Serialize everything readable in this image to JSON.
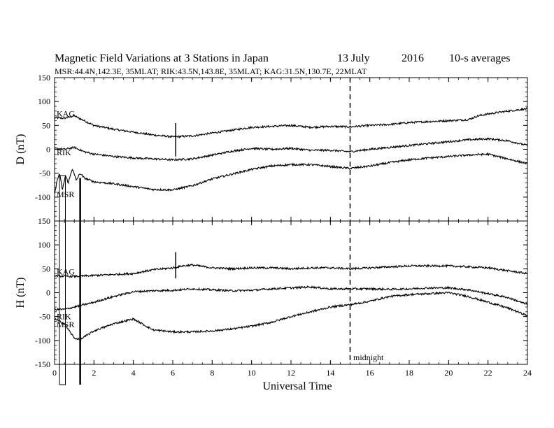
{
  "title": "Magnetic Field Variations at 3 Stations in Japan",
  "date": "13 July",
  "year": "2016",
  "averaging": "10-s averages",
  "stations_line": "MSR:44.4N,142.3E, 35MLAT;  RIK:43.5N,143.8E, 35MLAT;  KAG:31.5N,130.7E, 22MLAT",
  "colors": {
    "line": "#000000",
    "background": "#ffffff"
  },
  "chart_data": [
    {
      "type": "line",
      "panel": "top",
      "ylabel": "D (nT)",
      "ylim": [
        -150,
        150
      ],
      "yticks": [
        150,
        100,
        50,
        0,
        -50,
        -100,
        -150
      ],
      "xlim": [
        0,
        24
      ],
      "xticks": [
        0,
        2,
        4,
        6,
        8,
        10,
        12,
        14,
        16,
        18,
        20,
        22,
        24
      ],
      "series": [
        {
          "name": "KAG",
          "x": [
            0,
            0.5,
            1,
            1.5,
            2,
            3,
            4,
            5,
            6,
            7,
            8,
            9,
            10,
            11,
            12,
            13,
            14,
            15,
            16,
            17,
            18,
            19,
            20,
            21,
            21.5,
            22,
            23,
            24
          ],
          "y": [
            66,
            65,
            70,
            60,
            50,
            42,
            36,
            30,
            26,
            28,
            34,
            40,
            46,
            48,
            50,
            46,
            48,
            47,
            50,
            52,
            56,
            58,
            60,
            62,
            70,
            74,
            80,
            85
          ]
        },
        {
          "name": "RIK",
          "x": [
            0,
            0.5,
            1,
            1.5,
            2,
            3,
            4,
            5,
            6,
            7,
            8,
            9,
            10,
            11,
            12,
            13,
            14,
            15,
            16,
            17,
            18,
            19,
            20,
            21,
            22,
            23,
            24
          ],
          "y": [
            2,
            0,
            4,
            -5,
            -10,
            -15,
            -18,
            -20,
            -22,
            -20,
            -12,
            -4,
            2,
            0,
            2,
            -2,
            -2,
            -5,
            0,
            4,
            8,
            12,
            16,
            20,
            22,
            18,
            8
          ]
        },
        {
          "name": "MSR",
          "x": [
            0,
            0.1,
            0.25,
            0.4,
            0.55,
            0.7,
            0.9,
            1.1,
            1.3,
            1.5,
            2,
            3,
            4,
            5,
            6,
            7,
            8,
            9,
            10,
            11,
            12,
            13,
            14,
            15,
            16,
            17,
            18,
            19,
            20,
            21,
            22,
            23,
            24
          ],
          "y": [
            -95,
            -70,
            -50,
            -85,
            -55,
            -70,
            -40,
            -65,
            -50,
            -60,
            -68,
            -72,
            -78,
            -84,
            -85,
            -76,
            -62,
            -52,
            -42,
            -35,
            -32,
            -32,
            -36,
            -40,
            -35,
            -28,
            -22,
            -18,
            -15,
            -12,
            -10,
            -20,
            -30
          ]
        }
      ]
    },
    {
      "type": "line",
      "panel": "bottom",
      "ylabel": "H (nT)",
      "xlabel": "Universal Time",
      "ylim": [
        -150,
        150
      ],
      "yticks": [
        150,
        100,
        50,
        0,
        -50,
        -100,
        -150
      ],
      "xlim": [
        0,
        24
      ],
      "xticks": [
        0,
        2,
        4,
        6,
        8,
        10,
        12,
        14,
        16,
        18,
        20,
        22,
        24
      ],
      "series": [
        {
          "name": "KAG",
          "x": [
            0,
            1,
            2,
            3,
            4,
            5,
            6,
            6.5,
            7,
            8,
            9,
            10,
            11,
            12,
            13,
            14,
            15,
            16,
            17,
            18,
            19,
            20,
            21,
            22,
            23,
            24
          ],
          "y": [
            35,
            34,
            36,
            38,
            40,
            48,
            52,
            56,
            58,
            52,
            50,
            52,
            52,
            50,
            52,
            52,
            50,
            52,
            54,
            56,
            56,
            56,
            54,
            52,
            46,
            40
          ]
        },
        {
          "name": "RIK",
          "x": [
            0,
            0.5,
            1,
            2,
            3,
            4,
            5,
            6,
            7,
            8,
            9,
            10,
            11,
            12,
            13,
            14,
            15,
            16,
            17,
            18,
            19,
            20,
            21,
            22,
            23,
            24
          ],
          "y": [
            -35,
            -35,
            -30,
            -20,
            -8,
            2,
            4,
            5,
            8,
            6,
            4,
            5,
            8,
            10,
            12,
            8,
            8,
            8,
            7,
            8,
            10,
            10,
            6,
            -2,
            -10,
            -25
          ]
        },
        {
          "name": "MSR",
          "x": [
            0,
            0.5,
            1,
            1.3,
            2,
            3,
            4,
            5,
            6,
            7,
            8,
            9,
            10,
            11,
            12,
            13,
            14,
            15,
            16,
            17,
            18,
            19,
            20,
            21,
            22,
            23,
            24
          ],
          "y": [
            -55,
            -65,
            -95,
            -98,
            -80,
            -65,
            -55,
            -78,
            -82,
            -82,
            -80,
            -76,
            -70,
            -62,
            -50,
            -40,
            -30,
            -25,
            -18,
            -8,
            -4,
            -2,
            0,
            -8,
            -20,
            -32,
            -48
          ]
        }
      ]
    }
  ],
  "annotations": {
    "midnight_label": "midnight",
    "midnight_x": 15,
    "vertical_ticks": [
      {
        "panel": "top",
        "x": 6.15,
        "y_top": 55,
        "y_bottom": -15
      },
      {
        "panel": "bottom",
        "x": 6.15,
        "y_top": 85,
        "y_bottom": 30
      }
    ],
    "msr_box": {
      "x_start": 0.25,
      "x_end": 0.55,
      "y_top": -55,
      "y_bottom": -195
    },
    "thick_line_x": 1.3
  }
}
